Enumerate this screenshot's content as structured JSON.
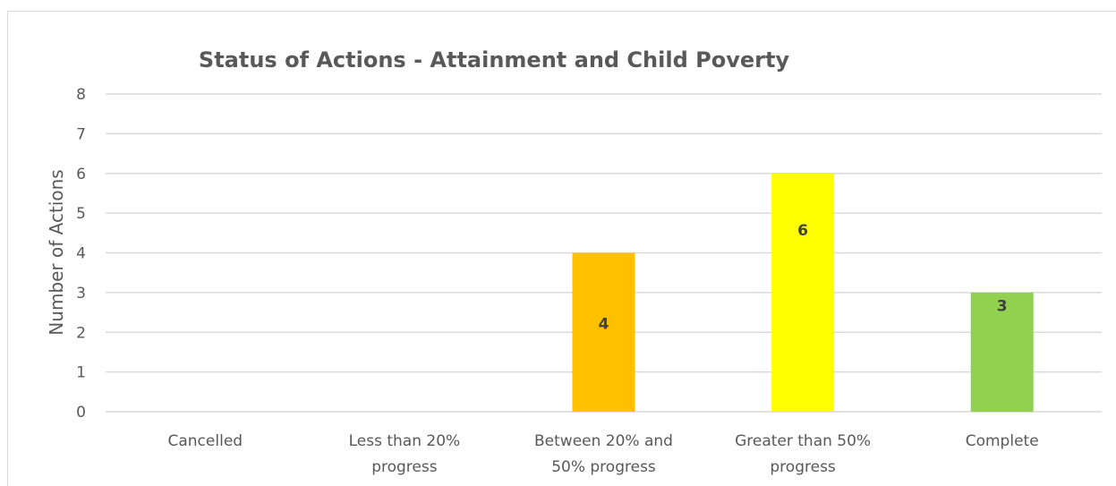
{
  "chart_data": {
    "type": "bar",
    "title": "Status of Actions - Attainment and Child Poverty",
    "ylabel": "Number of Actions",
    "xlabel": "",
    "ylim": [
      0,
      8
    ],
    "yticks": [
      0,
      1,
      2,
      3,
      4,
      5,
      6,
      7,
      8
    ],
    "grid": true,
    "legend": "none",
    "categories": [
      [
        "Cancelled"
      ],
      [
        "Less than 20%",
        "progress"
      ],
      [
        "Between 20% and",
        "50% progress"
      ],
      [
        "Greater than 50%",
        "progress"
      ],
      [
        "Complete"
      ]
    ],
    "values": [
      0,
      0,
      4,
      6,
      3
    ],
    "data_labels": [
      "",
      "",
      "4",
      "6",
      "3"
    ],
    "colors": [
      "#ffc000",
      "#ffc000",
      "#ffc000",
      "#ffff00",
      "#92d050"
    ]
  }
}
